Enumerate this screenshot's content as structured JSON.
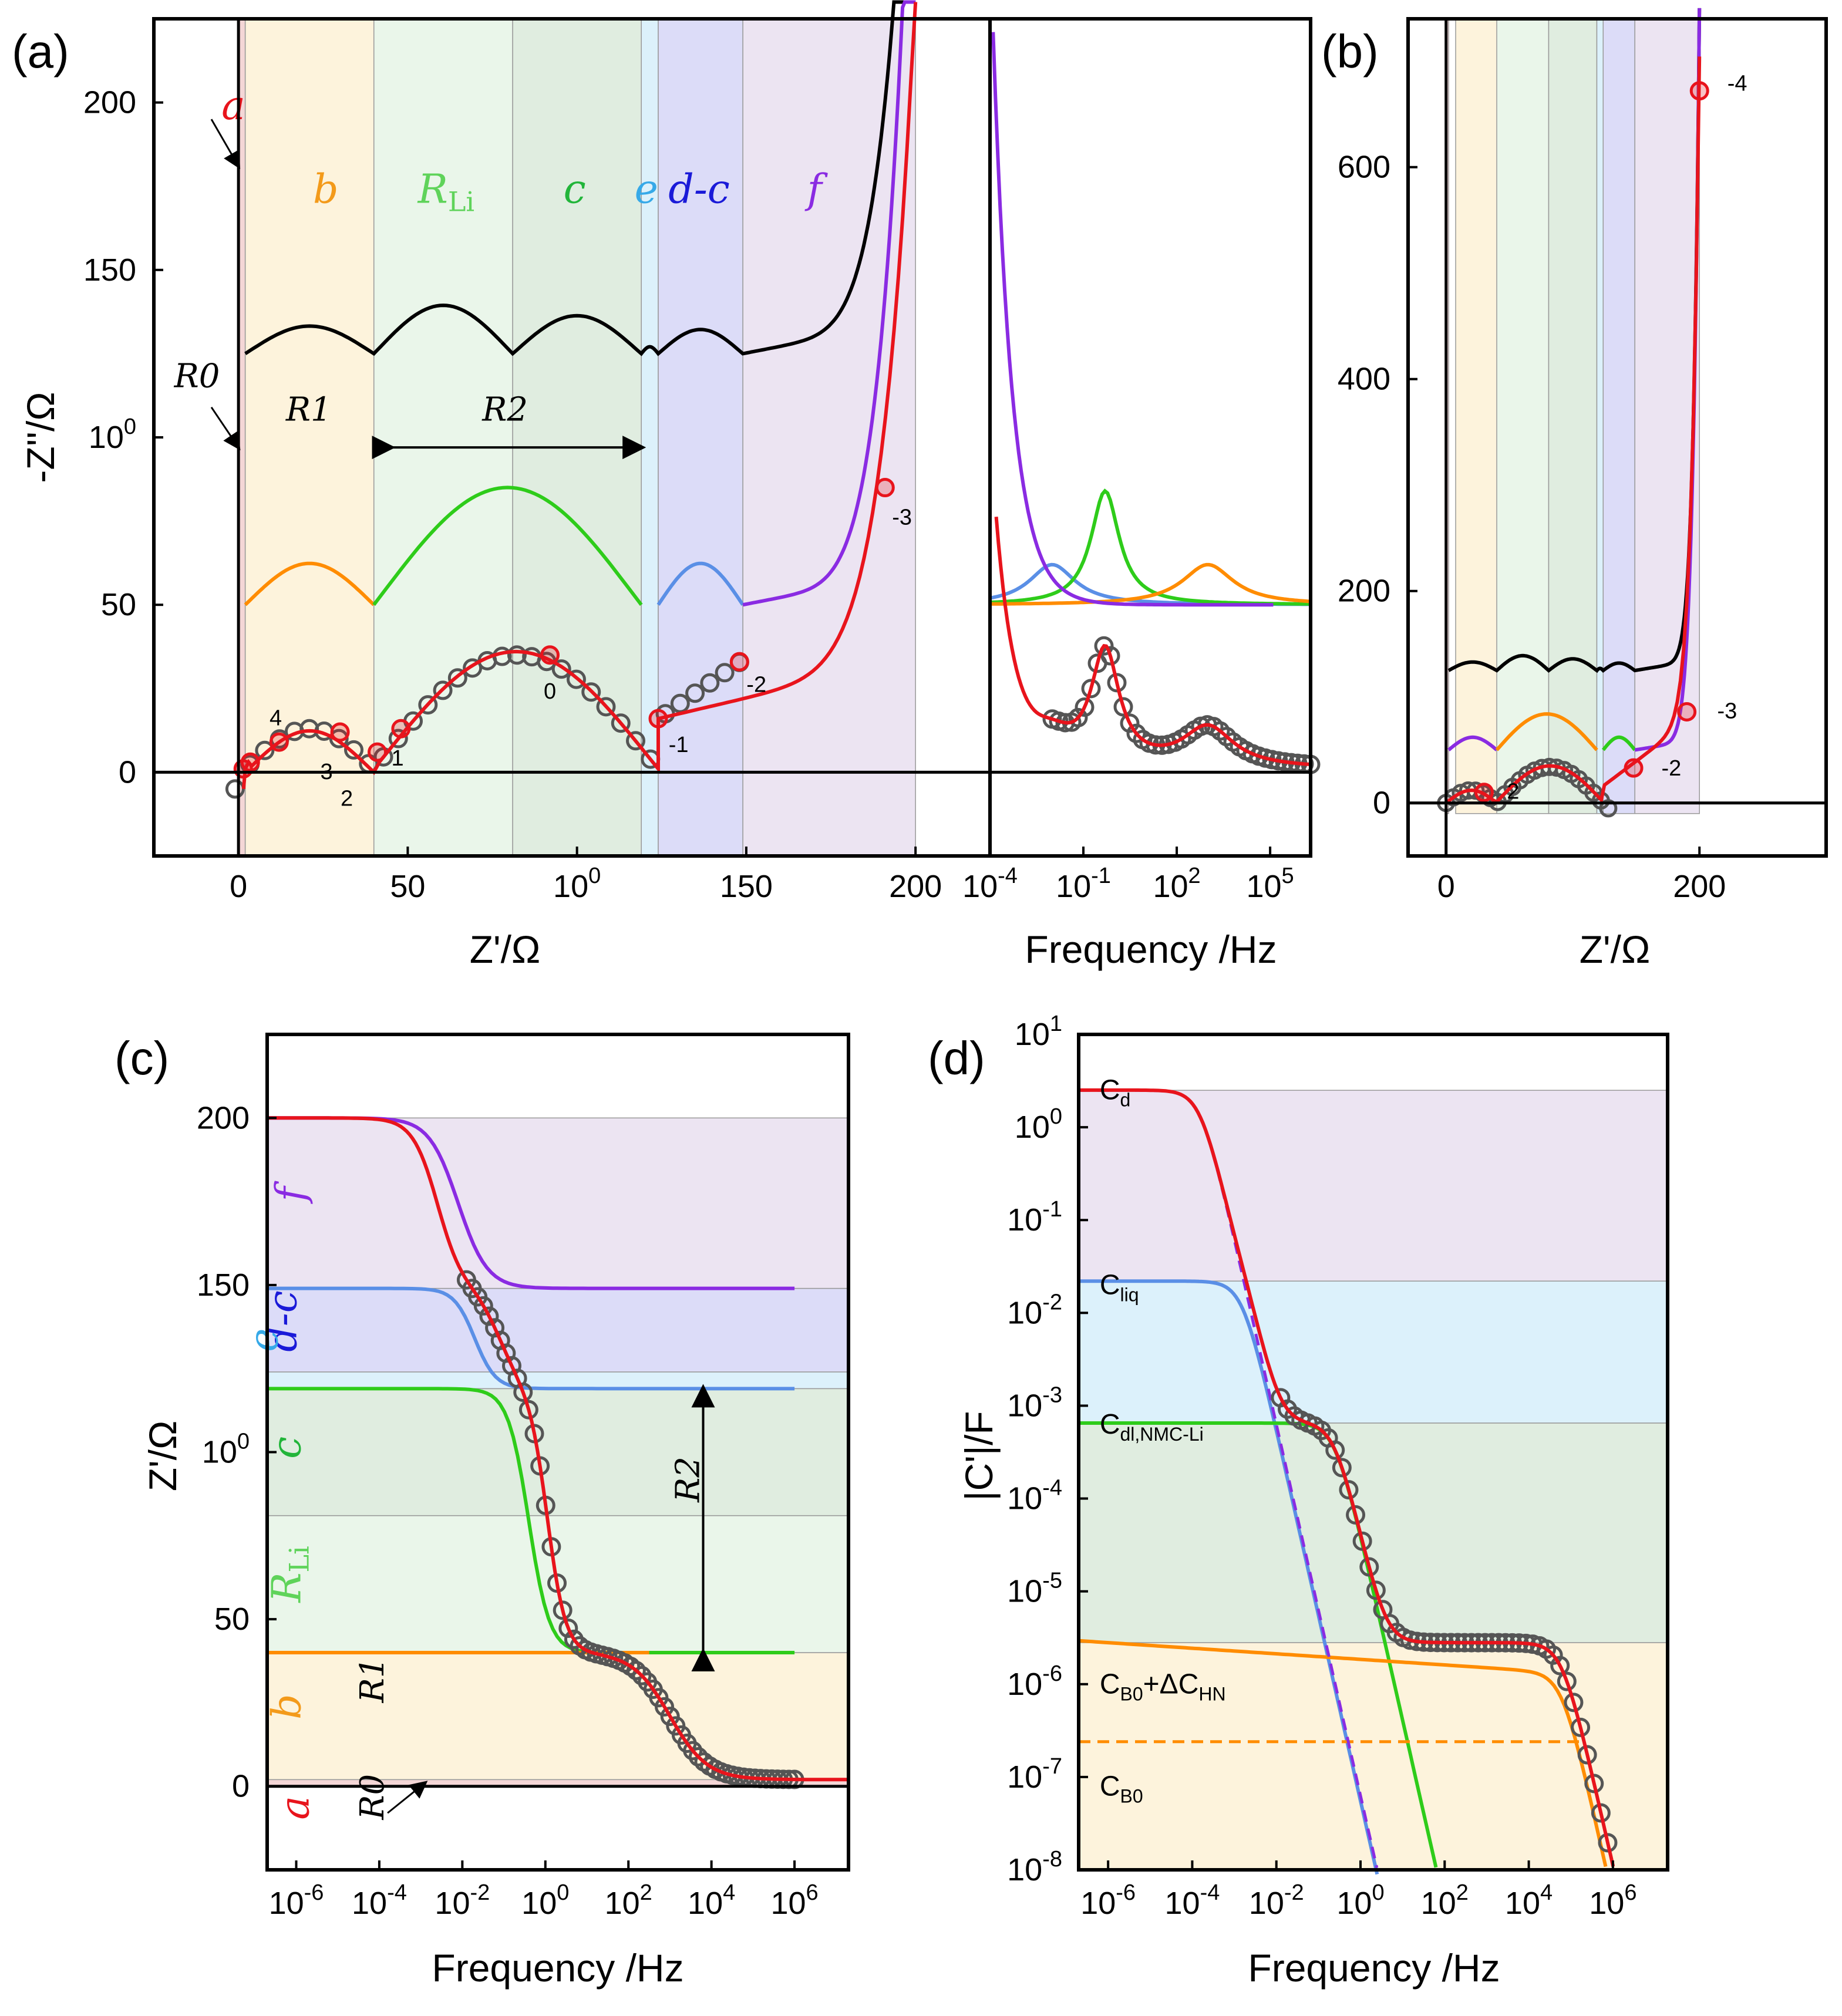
{
  "figure": {
    "panel_labels": [
      "(a)",
      "(b)",
      "(c)",
      "(d)"
    ]
  },
  "colors": {
    "data_red": "#e8141c",
    "exp_marker": "#555555",
    "black": "#000000",
    "violet": "#8a2be2",
    "green": "#2ecc1a",
    "orange": "#ff8c00",
    "blue": "#5a8fe6",
    "region_a": "#f4d6d6",
    "region_b": "#fdf3dc",
    "region_rli": "#eaf6ea",
    "region_c": "#e0ede0",
    "region_e": "#dcf1fb",
    "region_d": "#dcdcf8",
    "region_f": "#ece4f2"
  },
  "chart_data": [
    {
      "id": "a-nyquist",
      "type": "line",
      "xlabel": "Z'/Ω",
      "ylabel": "-Z''/Ω",
      "xlim": [
        -25,
        222
      ],
      "ylim": [
        -25,
        225
      ],
      "x_ticks": [
        "0",
        "50",
        "100",
        "150",
        "200"
      ],
      "y_ticks": [
        "0",
        "50",
        "100",
        "150",
        "200"
      ],
      "regions": [
        {
          "name": "a",
          "x0": 0,
          "x1": 2
        },
        {
          "name": "b",
          "x0": 2,
          "x1": 40
        },
        {
          "name": "R_Li",
          "x0": 40,
          "x1": 81
        },
        {
          "name": "c",
          "x0": 81,
          "x1": 119
        },
        {
          "name": "e",
          "x0": 119,
          "x1": 124
        },
        {
          "name": "d-c",
          "x0": 124,
          "x1": 149
        },
        {
          "name": "f",
          "x0": 149,
          "x1": 200
        }
      ],
      "region_labels": {
        "a": "a",
        "b": "b",
        "r_li_main": "R",
        "r_li_sub": "Li",
        "c": "c",
        "e": "e",
        "dc": "d-c",
        "f": "f"
      },
      "resistance_labels": {
        "r0": "R0",
        "r1": "R1",
        "r2": "R2"
      },
      "decade_labels": [
        "4",
        "3",
        "2",
        "1",
        "0",
        "-1",
        "-2",
        "-3"
      ],
      "series": [
        {
          "name": "total-model (offset +125)",
          "color": "black",
          "offset": 125,
          "arcs": [
            [
              2,
              40,
              8
            ],
            [
              40,
              81,
              14
            ],
            [
              81,
              119,
              11
            ],
            [
              119,
              124,
              2
            ],
            [
              124,
              149,
              7
            ]
          ],
          "tail_from": 149
        },
        {
          "name": "components (offset +50)",
          "offset": 50,
          "arcs": [
            [
              2,
              40,
              12,
              "orange"
            ],
            [
              40,
              119,
              34,
              "green"
            ],
            [
              124,
              149,
              12,
              "blue"
            ]
          ],
          "tail_from": 149
        },
        {
          "name": "fit (red)",
          "color": "data_red",
          "values_note": "Nyquist fit through experimental points"
        },
        {
          "name": "experiment",
          "color": "exp_marker"
        }
      ],
      "highlight_points": [
        [
          1.4,
          1
        ],
        [
          3.5,
          3
        ],
        [
          12,
          9
        ],
        [
          30,
          12
        ],
        [
          41,
          6
        ],
        [
          48,
          13
        ],
        [
          92,
          35
        ],
        [
          124,
          16
        ],
        [
          148,
          33
        ],
        [
          191,
          85
        ]
      ]
    },
    {
      "id": "a-bode-imag",
      "type": "line",
      "xlabel": "Frequency /Hz",
      "x_scale": "log",
      "xlim_log10": [
        -4,
        6.3
      ],
      "x_ticks": [
        "10-4",
        "10-1",
        "102",
        "105"
      ],
      "peaks_log10_freq": {
        "blue": -2.0,
        "green": -0.3,
        "orange": 3.0
      },
      "peak_heights": {
        "blue": 12,
        "green": 34,
        "orange": 12
      }
    },
    {
      "id": "b-nyquist-wide",
      "type": "line",
      "xlabel": "Z'/Ω",
      "ylabel": "",
      "xlim": [
        -30,
        300
      ],
      "ylim": [
        -50,
        740
      ],
      "x_ticks": [
        "0",
        "200"
      ],
      "y_ticks": [
        "0",
        "200",
        "400",
        "600"
      ],
      "decade_labels": [
        "-4",
        "-3",
        "-2",
        "2"
      ],
      "highlight_points": [
        [
          200,
          672
        ],
        [
          190,
          86
        ],
        [
          148,
          33
        ],
        [
          30,
          10
        ]
      ]
    },
    {
      "id": "c-bode-real",
      "type": "line",
      "xlabel": "Frequency /Hz",
      "ylabel": "Z'/Ω",
      "x_scale": "log",
      "xlim_log10": [
        -6.7,
        7.3
      ],
      "ylim": [
        -25,
        225
      ],
      "x_ticks": [
        "10-6",
        "10-4",
        "10-2",
        "100",
        "102",
        "104",
        "106"
      ],
      "y_ticks": [
        "0",
        "50",
        "100",
        "150",
        "200"
      ],
      "levels": {
        "R0": 2,
        "R1": 40,
        "RLi": 81,
        "R2_top": 119,
        "dc": 149,
        "f": 200
      },
      "region_labels": {
        "a": "a",
        "b": "b",
        "r_li_main": "R",
        "r_li_sub": "Li",
        "c": "c",
        "e": "e",
        "dc": "d-c",
        "f": "f"
      },
      "resistance_labels": {
        "r0": "R0",
        "r1": "R1",
        "r2": "R2"
      }
    },
    {
      "id": "d-capacitance",
      "type": "line",
      "xlabel": "Frequency /Hz",
      "ylabel": "|C'|/F",
      "x_scale": "log",
      "y_scale": "log",
      "xlim_log10": [
        -6.7,
        7.3
      ],
      "ylim_log10": [
        -8,
        1
      ],
      "x_ticks": [
        "10-6",
        "10-4",
        "10-2",
        "100",
        "102",
        "104",
        "106"
      ],
      "y_ticks": [
        "10-8",
        "10-7",
        "10-6",
        "10-5",
        "10-4",
        "10-3",
        "10-2",
        "10-1",
        "100",
        "101"
      ],
      "plateaus": {
        "Cd": 2.5,
        "Cliq": 0.022,
        "Cdl": 0.00065,
        "CB0_plus_dCHN": 2.8e-06,
        "CB0": 2.4e-07
      },
      "annotations": {
        "cd_main": "C",
        "cd_sub": "d",
        "cliq_main": "C",
        "cliq_sub": "liq",
        "cdl_main": "C",
        "cdl_sub": "dl,NMC-Li",
        "cb0hn_main": "C",
        "cb0hn_sub1": "B0",
        "cb0hn_mid": "+ΔC",
        "cb0hn_sub2": "HN",
        "cb0_main": "C",
        "cb0_sub": "B0"
      }
    }
  ]
}
